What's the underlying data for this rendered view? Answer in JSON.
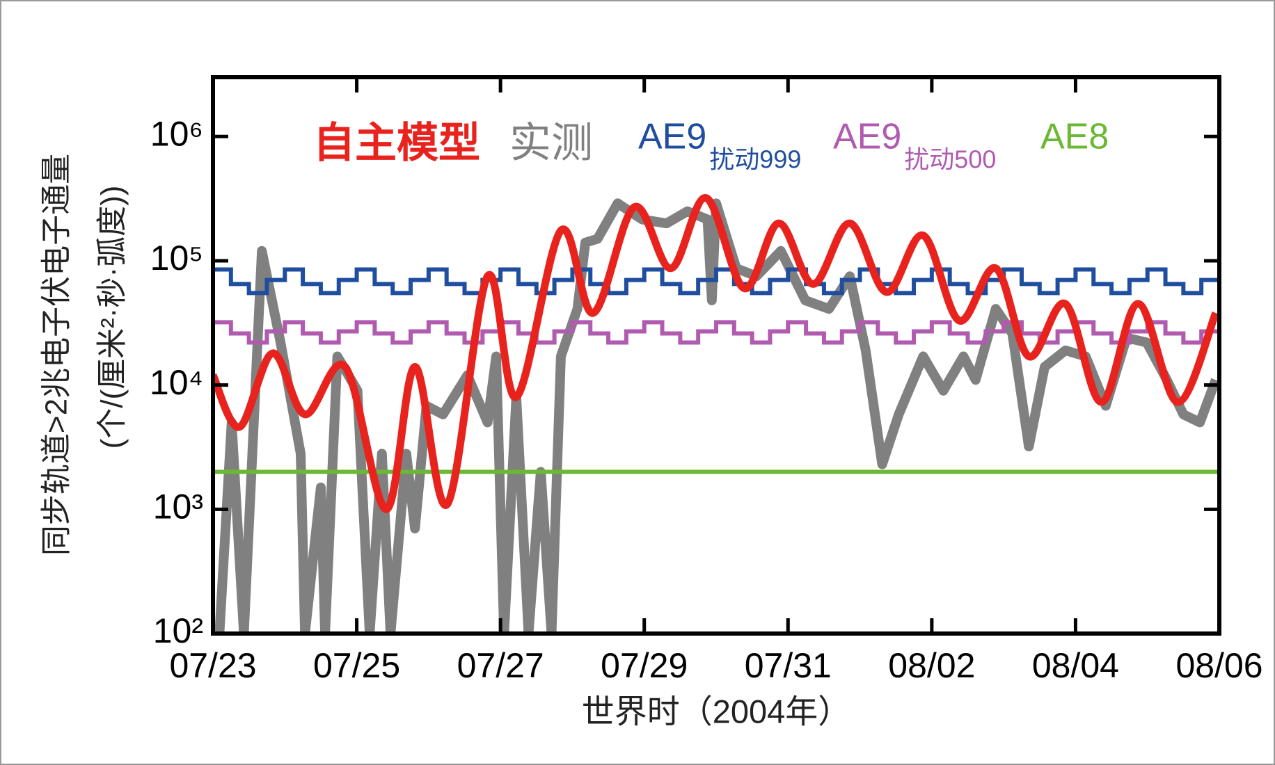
{
  "chart_data": {
    "type": "line",
    "ylabel": [
      "同步轨道>2兆电子伏电子通量",
      "(个/(厘米²·秒·弧度))"
    ],
    "xlabel": "世界时（2004年）",
    "ylog": true,
    "xlim": [
      0,
      14
    ],
    "ylim": [
      100,
      3000000
    ],
    "xticks": [
      {
        "value": 0,
        "label": "07/23"
      },
      {
        "value": 2,
        "label": "07/25"
      },
      {
        "value": 4,
        "label": "07/27"
      },
      {
        "value": 6,
        "label": "07/29"
      },
      {
        "value": 8,
        "label": "07/31"
      },
      {
        "value": 10,
        "label": "08/02"
      },
      {
        "value": 12,
        "label": "08/04"
      },
      {
        "value": 14,
        "label": "08/06"
      }
    ],
    "yticks": [
      {
        "value": 100,
        "label": "10²"
      },
      {
        "value": 1000,
        "label": "10³"
      },
      {
        "value": 10000,
        "label": "10⁴"
      },
      {
        "value": 100000,
        "label": "10⁵"
      },
      {
        "value": 1000000,
        "label": "10⁶"
      }
    ],
    "series": [
      {
        "name": "实测",
        "color": "#808080",
        "style": "jagged",
        "x": [
          0.09,
          0.26,
          0.43,
          0.68,
          0.94,
          1.22,
          1.28,
          1.5,
          1.56,
          1.73,
          2.01,
          2.18,
          2.35,
          2.47,
          2.69,
          2.81,
          2.97,
          3.2,
          3.54,
          3.82,
          3.94,
          4.05,
          4.22,
          4.39,
          4.56,
          4.71,
          4.84,
          5.07,
          5.18,
          5.35,
          5.63,
          5.97,
          6.31,
          6.6,
          6.88,
          6.94,
          7.0,
          7.28,
          7.56,
          7.9,
          8.24,
          8.57,
          8.86,
          9.08,
          9.31,
          9.54,
          9.88,
          10.16,
          10.44,
          10.61,
          10.89,
          11.12,
          11.35,
          11.57,
          11.86,
          12.14,
          12.42,
          12.71,
          12.99,
          13.27,
          13.5,
          13.73,
          13.95
        ],
        "values": [
          100,
          5000,
          100,
          120000,
          22000,
          2800,
          100,
          1500,
          100,
          17000,
          9000,
          100,
          2800,
          100,
          2800,
          700,
          6800,
          5800,
          12000,
          5000,
          17000,
          100,
          8000,
          100,
          2000,
          100,
          17000,
          41000,
          140000,
          150000,
          290000,
          215000,
          200000,
          250000,
          215000,
          48000,
          290000,
          87000,
          75000,
          120000,
          48000,
          41000,
          75000,
          19000,
          2300,
          5800,
          17000,
          9000,
          17000,
          11000,
          41000,
          26000,
          3200,
          14000,
          19000,
          17000,
          6800,
          24000,
          22000,
          11000,
          5800,
          5000,
          11000
        ]
      },
      {
        "name": "AE9",
        "name_sub": "扰动999",
        "color": "#1f4e9e",
        "style": "step",
        "x": [
          0,
          0.25,
          0.5,
          0.75,
          1,
          1.25,
          1.5,
          1.75,
          2,
          2.25,
          2.5,
          2.75,
          3,
          3.25,
          3.5,
          3.75,
          4,
          4.25,
          4.5,
          4.75,
          5,
          5.25,
          5.5,
          5.75,
          6,
          6.25,
          6.5,
          6.75,
          7,
          7.25,
          7.5,
          7.75,
          8,
          8.25,
          8.5,
          8.75,
          9,
          9.25,
          9.5,
          9.75,
          10,
          10.25,
          10.5,
          10.75,
          11,
          11.25,
          11.5,
          11.75,
          12,
          12.25,
          12.5,
          12.75,
          13,
          13.25,
          13.5,
          13.75,
          14
        ],
        "values": [
          85000,
          65000,
          55000,
          70000,
          85000,
          65000,
          55000,
          70000,
          85000,
          65000,
          55000,
          70000,
          85000,
          65000,
          55000,
          70000,
          85000,
          65000,
          55000,
          70000,
          85000,
          65000,
          55000,
          70000,
          85000,
          65000,
          55000,
          70000,
          85000,
          65000,
          55000,
          70000,
          85000,
          65000,
          55000,
          70000,
          85000,
          65000,
          55000,
          70000,
          85000,
          65000,
          55000,
          70000,
          85000,
          65000,
          55000,
          70000,
          85000,
          65000,
          55000,
          70000,
          85000,
          65000,
          55000,
          70000,
          85000
        ]
      },
      {
        "name": "AE9",
        "name_sub": "扰动500",
        "color": "#b05ab0",
        "style": "step",
        "x": [
          0,
          0.25,
          0.5,
          0.75,
          1,
          1.25,
          1.5,
          1.75,
          2,
          2.25,
          2.5,
          2.75,
          3,
          3.25,
          3.5,
          3.75,
          4,
          4.25,
          4.5,
          4.75,
          5,
          5.25,
          5.5,
          5.75,
          6,
          6.25,
          6.5,
          6.75,
          7,
          7.25,
          7.5,
          7.75,
          8,
          8.25,
          8.5,
          8.75,
          9,
          9.25,
          9.5,
          9.75,
          10,
          10.25,
          10.5,
          10.75,
          11,
          11.25,
          11.5,
          11.75,
          12,
          12.25,
          12.5,
          12.75,
          13,
          13.25,
          13.5,
          13.75,
          14
        ],
        "values": [
          32000,
          26000,
          22000,
          27000,
          32000,
          26000,
          22000,
          27000,
          32000,
          26000,
          22000,
          27000,
          32000,
          26000,
          22000,
          27000,
          32000,
          26000,
          22000,
          27000,
          32000,
          26000,
          22000,
          27000,
          32000,
          26000,
          22000,
          27000,
          32000,
          26000,
          22000,
          27000,
          32000,
          26000,
          22000,
          27000,
          32000,
          26000,
          22000,
          27000,
          32000,
          26000,
          22000,
          27000,
          32000,
          26000,
          22000,
          27000,
          32000,
          26000,
          22000,
          27000,
          32000,
          26000,
          22000,
          27000,
          32000
        ]
      },
      {
        "name": "AE8",
        "color": "#6ab833",
        "style": "straight",
        "x": [
          0,
          14
        ],
        "values": [
          2000,
          2000
        ]
      },
      {
        "name": "自主模型",
        "color": "#e8221c",
        "style": "smooth",
        "x": [
          0,
          0.37,
          0.83,
          1.28,
          1.84,
          2.41,
          2.81,
          3.26,
          3.82,
          4.22,
          4.84,
          5.29,
          5.86,
          6.37,
          6.86,
          7.39,
          7.87,
          8.35,
          8.86,
          9.37,
          9.88,
          10.38,
          10.89,
          11.35,
          11.86,
          12.36,
          12.87,
          13.42,
          13.95
        ],
        "values": [
          12000,
          4600,
          18000,
          5800,
          14000,
          1000,
          14000,
          1100,
          75000,
          8000,
          175000,
          38000,
          270000,
          87000,
          320000,
          60000,
          200000,
          65000,
          200000,
          56000,
          160000,
          33000,
          87000,
          17000,
          45000,
          7300,
          45000,
          7300,
          38000
        ]
      }
    ]
  }
}
